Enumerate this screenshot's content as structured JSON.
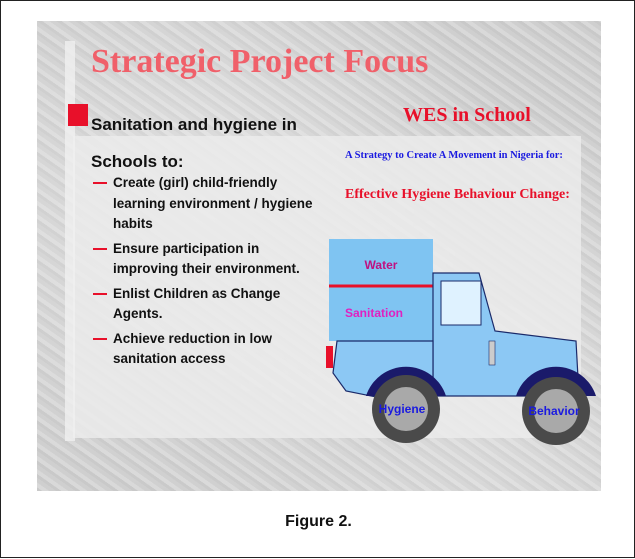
{
  "slide": {
    "title": "Strategic Project Focus",
    "intro": "Sanitation and hygiene in Schools to:",
    "bullets": [
      "Create (girl) child-friendly learning environment / hygiene habits",
      "Ensure participation in improving their environment.",
      "Enlist Children as Change Agents.",
      "Achieve reduction in low sanitation access"
    ],
    "right_heading": "WES in School",
    "strategy": "A Strategy to Create A Movement in Nigeria for:",
    "goal": "Effective Hygiene Behaviour Change:",
    "truck": {
      "upper": "Water",
      "lower": "Sanitation",
      "rear_wheel": "Hygiene",
      "front_wheel": "Behavior"
    }
  },
  "caption": "Figure 2."
}
